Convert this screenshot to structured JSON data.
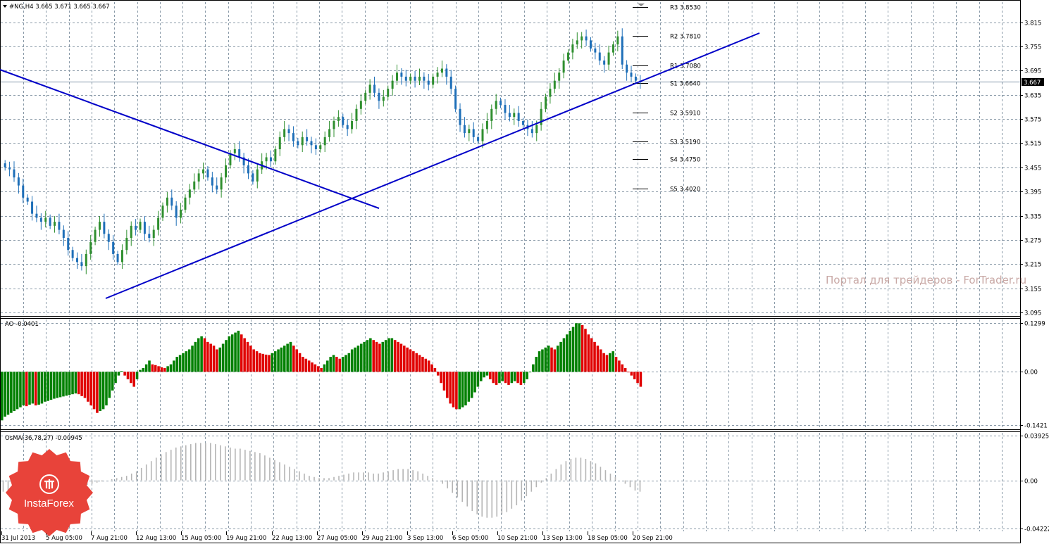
{
  "header": {
    "symbol_line": "#NG,H4  3.665 3.671 3.665 3.667"
  },
  "colors": {
    "bull": "#2f8f2f",
    "bear": "#1e6fb8",
    "ao_up": "#008000",
    "ao_down": "#e00000",
    "osma": "#b5b5b5",
    "trendline": "#0000c8",
    "grid": "#8a9aa8",
    "price_tag_bg": "#000000"
  },
  "watermark": "Портал для трейдеров - ForTrader.ru",
  "logo": {
    "text": "InstaForex"
  },
  "chart_data": [
    {
      "type": "candlestick",
      "name": "#NG,H4",
      "ohlc_header": {
        "open": 3.665,
        "high": 3.671,
        "low": 3.665,
        "close": 3.667
      },
      "current_price_label": "3.667",
      "current_price": 3.667,
      "y_ticks": [
        "3.815",
        "3.755",
        "3.695",
        "3.635",
        "3.575",
        "3.515",
        "3.455",
        "3.395",
        "3.335",
        "3.275",
        "3.215",
        "3.155",
        "3.095"
      ],
      "ylim": [
        3.088,
        3.865
      ],
      "x_ticks": [
        "31 Jul 2013",
        "5 Aug 05:00",
        "7 Aug 21:00",
        "12 Aug 13:00",
        "15 Aug 05:00",
        "19 Aug 21:00",
        "22 Aug 13:00",
        "27 Aug 05:00",
        "29 Aug 21:00",
        "3 Sep 13:00",
        "6 Sep 05:00",
        "10 Sep 21:00",
        "13 Sep 13:00",
        "18 Sep 05:00",
        "20 Sep 21:00"
      ],
      "close_path": [
        3.455,
        3.45,
        3.43,
        3.41,
        3.38,
        3.37,
        3.34,
        3.33,
        3.32,
        3.33,
        3.31,
        3.32,
        3.3,
        3.28,
        3.25,
        3.23,
        3.22,
        3.21,
        3.24,
        3.27,
        3.3,
        3.32,
        3.29,
        3.27,
        3.24,
        3.22,
        3.25,
        3.28,
        3.31,
        3.3,
        3.32,
        3.29,
        3.28,
        3.3,
        3.33,
        3.36,
        3.38,
        3.36,
        3.33,
        3.35,
        3.38,
        3.4,
        3.42,
        3.44,
        3.45,
        3.43,
        3.41,
        3.4,
        3.43,
        3.46,
        3.49,
        3.5,
        3.48,
        3.46,
        3.44,
        3.42,
        3.45,
        3.47,
        3.48,
        3.47,
        3.5,
        3.53,
        3.55,
        3.54,
        3.52,
        3.51,
        3.53,
        3.52,
        3.51,
        3.5,
        3.51,
        3.53,
        3.55,
        3.57,
        3.58,
        3.56,
        3.55,
        3.57,
        3.6,
        3.62,
        3.64,
        3.66,
        3.64,
        3.62,
        3.63,
        3.65,
        3.67,
        3.69,
        3.68,
        3.67,
        3.68,
        3.67,
        3.68,
        3.67,
        3.66,
        3.68,
        3.69,
        3.7,
        3.68,
        3.65,
        3.6,
        3.56,
        3.54,
        3.55,
        3.53,
        3.52,
        3.55,
        3.57,
        3.6,
        3.62,
        3.61,
        3.59,
        3.58,
        3.59,
        3.57,
        3.56,
        3.55,
        3.54,
        3.56,
        3.6,
        3.63,
        3.65,
        3.67,
        3.69,
        3.72,
        3.74,
        3.76,
        3.77,
        3.78,
        3.77,
        3.75,
        3.74,
        3.72,
        3.71,
        3.74,
        3.76,
        3.78,
        3.71,
        3.69,
        3.68,
        3.67,
        3.667
      ],
      "pivot_levels": [
        {
          "name": "R3",
          "value": 3.853,
          "label": "R3 3.8530"
        },
        {
          "name": "R2",
          "value": 3.781,
          "label": "R2 3.7810"
        },
        {
          "name": "R1",
          "value": 3.708,
          "label": "R1 3.7080"
        },
        {
          "name": "S1",
          "value": 3.664,
          "label": "S1 3.6640"
        },
        {
          "name": "S2",
          "value": 3.591,
          "label": "S2 3.5910"
        },
        {
          "name": "S3",
          "value": 3.519,
          "label": "S3 3.5190"
        },
        {
          "name": "S4",
          "value": 3.475,
          "label": "S4 3.4750"
        },
        {
          "name": "S5",
          "value": 3.402,
          "label": "S5 3.4020"
        }
      ]
    },
    {
      "type": "histogram",
      "name": "AO",
      "header": "AO -0.0401",
      "y_ticks": [
        "0.1299",
        "0.00",
        "-0.1421"
      ],
      "ylim": [
        -0.152,
        0.14
      ],
      "values": [
        -0.13,
        -0.12,
        -0.115,
        -0.11,
        -0.105,
        -0.1,
        -0.095,
        -0.09,
        -0.092,
        -0.088,
        -0.085,
        -0.09,
        -0.088,
        -0.085,
        -0.08,
        -0.078,
        -0.075,
        -0.072,
        -0.07,
        -0.068,
        -0.066,
        -0.064,
        -0.062,
        -0.06,
        -0.058,
        -0.06,
        -0.065,
        -0.07,
        -0.08,
        -0.09,
        -0.1,
        -0.11,
        -0.105,
        -0.1,
        -0.09,
        -0.07,
        -0.05,
        -0.03,
        -0.01,
        0.002,
        -0.01,
        -0.02,
        -0.03,
        -0.04,
        -0.02,
        0.005,
        0.01,
        0.02,
        0.03,
        0.02,
        0.018,
        0.015,
        0.012,
        0.01,
        0.015,
        0.02,
        0.03,
        0.04,
        0.045,
        0.05,
        0.055,
        0.06,
        0.07,
        0.08,
        0.09,
        0.095,
        0.09,
        0.08,
        0.075,
        0.07,
        0.06,
        0.065,
        0.075,
        0.085,
        0.095,
        0.1,
        0.105,
        0.11,
        0.1,
        0.09,
        0.08,
        0.07,
        0.06,
        0.055,
        0.05,
        0.048,
        0.046,
        0.045,
        0.05,
        0.055,
        0.06,
        0.065,
        0.07,
        0.075,
        0.08,
        0.07,
        0.06,
        0.05,
        0.04,
        0.035,
        0.03,
        0.025,
        0.02,
        0.015,
        0.01,
        0.02,
        0.03,
        0.04,
        0.045,
        0.04,
        0.035,
        0.04,
        0.045,
        0.05,
        0.06,
        0.065,
        0.07,
        0.075,
        0.08,
        0.085,
        0.09,
        0.085,
        0.08,
        0.075,
        0.08,
        0.085,
        0.09,
        0.09,
        0.085,
        0.08,
        0.075,
        0.07,
        0.065,
        0.06,
        0.055,
        0.05,
        0.045,
        0.04,
        0.035,
        0.03,
        0.02,
        0.01,
        -0.01,
        -0.03,
        -0.05,
        -0.07,
        -0.085,
        -0.095,
        -0.1,
        -0.1,
        -0.095,
        -0.09,
        -0.08,
        -0.07,
        -0.055,
        -0.04,
        -0.025,
        -0.015,
        -0.01,
        -0.02,
        -0.03,
        -0.035,
        -0.03,
        -0.025,
        -0.03,
        -0.035,
        -0.03,
        -0.025,
        -0.03,
        -0.035,
        -0.03,
        -0.02,
        0.0,
        0.02,
        0.04,
        0.055,
        0.06,
        0.065,
        0.07,
        0.065,
        0.06,
        0.07,
        0.08,
        0.09,
        0.1,
        0.11,
        0.12,
        0.13,
        0.13,
        0.125,
        0.115,
        0.1,
        0.09,
        0.08,
        0.07,
        0.06,
        0.05,
        0.045,
        0.05,
        0.055,
        0.04,
        0.03,
        0.02,
        0.01,
        0.0,
        -0.01,
        -0.02,
        -0.03,
        -0.04
      ]
    },
    {
      "type": "histogram",
      "name": "OsMA(36,78,27)",
      "header": "OsMA(36,78,27) -0.00945",
      "y_ticks": [
        "0.03925",
        "0.00",
        "-0.04222"
      ],
      "ylim": [
        -0.045,
        0.042
      ],
      "values": [
        -0.01,
        -0.012,
        -0.015,
        -0.016,
        -0.016,
        -0.015,
        -0.015,
        -0.014,
        -0.013,
        -0.012,
        -0.011,
        -0.01,
        -0.009,
        -0.008,
        -0.007,
        -0.006,
        -0.005,
        -0.004,
        -0.003,
        -0.002,
        -0.001,
        0.0,
        0.001,
        0.002,
        0.003,
        0.004,
        0.006,
        0.008,
        0.011,
        0.014,
        0.017,
        0.02,
        0.023,
        0.025,
        0.027,
        0.029,
        0.03,
        0.031,
        0.032,
        0.033,
        0.033,
        0.033,
        0.033,
        0.032,
        0.031,
        0.03,
        0.029,
        0.028,
        0.028,
        0.027,
        0.026,
        0.025,
        0.024,
        0.022,
        0.02,
        0.018,
        0.016,
        0.014,
        0.012,
        0.01,
        0.008,
        0.006,
        0.004,
        0.003,
        0.002,
        0.002,
        0.002,
        0.003,
        0.004,
        0.005,
        0.006,
        0.007,
        0.007,
        0.007,
        0.007,
        0.006,
        0.006,
        0.007,
        0.008,
        0.009,
        0.01,
        0.01,
        0.01,
        0.009,
        0.008,
        0.006,
        0.004,
        0.002,
        0.0,
        -0.003,
        -0.007,
        -0.011,
        -0.015,
        -0.019,
        -0.023,
        -0.027,
        -0.03,
        -0.032,
        -0.033,
        -0.033,
        -0.032,
        -0.03,
        -0.028,
        -0.025,
        -0.022,
        -0.018,
        -0.014,
        -0.01,
        -0.006,
        -0.002,
        0.002,
        0.006,
        0.01,
        0.014,
        0.017,
        0.019,
        0.02,
        0.02,
        0.019,
        0.017,
        0.015,
        0.012,
        0.009,
        0.006,
        0.003,
        0.0,
        -0.003,
        -0.006,
        -0.009,
        -0.01
      ]
    }
  ]
}
